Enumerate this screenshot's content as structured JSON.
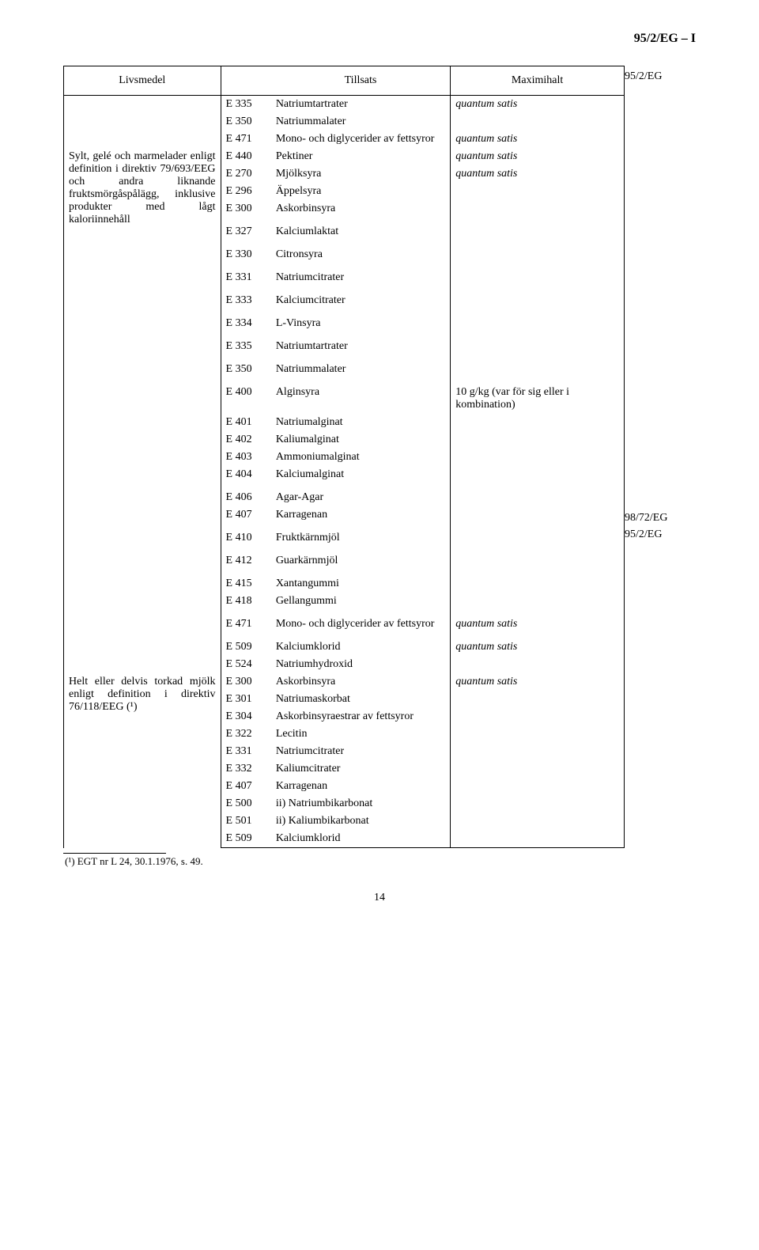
{
  "page_header_right": "95/2/EG – I",
  "side_labels": {
    "top": "95/2/EG",
    "mid1": "98/72/EG",
    "mid2": "95/2/EG"
  },
  "headers": {
    "livsmedel": "Livsmedel",
    "tillsats": "Tillsats",
    "maximihalt": "Maximihalt"
  },
  "blocks": [
    {
      "livsmedel": "",
      "side": "top",
      "rows": [
        {
          "c": "E 335",
          "n": "Natriumtartrater",
          "m": "quantum satis",
          "mi": true
        },
        {
          "c": "E 350",
          "n": "Natriummalater",
          "m": ""
        },
        {
          "c": "E 471",
          "n": "Mono- och diglycerider av fettsyror",
          "m": "quantum satis",
          "mi": true
        }
      ]
    },
    {
      "livsmedel": "Sylt, gelé och marmelader enligt definition i direktiv 79/693/EEG och andra liknande fruktsmörgåspålägg, inklusive produkter med lågt kaloriinnehåll",
      "rows": [
        {
          "c": "E 440",
          "n": "Pektiner",
          "m": "quantum satis",
          "mi": true
        },
        {
          "c": "E 270",
          "n": "Mjölksyra",
          "m": "quantum satis",
          "mi": true
        },
        {
          "c": "E 296",
          "n": "Äppelsyra",
          "m": ""
        },
        {
          "c": "E 300",
          "n": "Askorbinsyra",
          "m": ""
        },
        {
          "c": "E 327",
          "n": "Kalciumlaktat",
          "m": "",
          "gap": true
        },
        {
          "c": "E 330",
          "n": "Citronsyra",
          "m": "",
          "gap": true
        },
        {
          "c": "E 331",
          "n": "Natriumcitrater",
          "m": "",
          "gap": true
        },
        {
          "c": "E 333",
          "n": "Kalciumcitrater",
          "m": "",
          "gap": true
        },
        {
          "c": "E 334",
          "n": "L-Vinsyra",
          "m": "",
          "gap": true
        },
        {
          "c": "E 335",
          "n": "Natriumtartrater",
          "m": "",
          "gap": true
        },
        {
          "c": "E 350",
          "n": "Natriummalater",
          "m": "",
          "gap": true
        },
        {
          "c": "E 400",
          "n": "Alginsyra",
          "m": "10 g/kg (var för sig eller i kombination)",
          "gap": true
        },
        {
          "c": "E 401",
          "n": "Natriumalginat",
          "m": ""
        },
        {
          "c": "E 402",
          "n": "Kaliumalginat",
          "m": ""
        },
        {
          "c": "E 403",
          "n": "Ammoniumalginat",
          "m": ""
        },
        {
          "c": "E 404",
          "n": "Kalciumalginat",
          "m": ""
        },
        {
          "c": "E 406",
          "n": "Agar-Agar",
          "m": "",
          "gap": true
        },
        {
          "c": "E 407",
          "n": "Karragenan",
          "m": ""
        },
        {
          "c": "E 410",
          "n": "Fruktkärnmjöl",
          "m": "",
          "gap": true
        },
        {
          "c": "E 412",
          "n": "Guarkärnmjöl",
          "m": "",
          "gap": true
        },
        {
          "c": "E 415",
          "n": "Xantangummi",
          "m": "",
          "gap": true
        },
        {
          "c": "E 418",
          "n": "Gellangummi",
          "m": ""
        }
      ]
    },
    {
      "side": "mid1",
      "rows": [
        {
          "c": "E 471",
          "n": "Mono- och diglycerider av fettsyror",
          "m": "quantum satis",
          "mi": true,
          "gap": true
        }
      ]
    },
    {
      "side": "mid2",
      "rows": [
        {
          "c": "E 509",
          "n": "Kalciumklorid",
          "m": "quantum satis",
          "mi": true,
          "gap": true
        },
        {
          "c": "E 524",
          "n": "Natriumhydroxid",
          "m": ""
        }
      ]
    },
    {
      "livsmedel": "Helt eller delvis torkad mjölk enligt definition i direktiv 76/118/EEG (¹)",
      "bottom": true,
      "rows": [
        {
          "c": "E 300",
          "n": "Askorbinsyra",
          "m": "quantum satis",
          "mi": true
        },
        {
          "c": "E 301",
          "n": "Natriumaskorbat",
          "m": ""
        },
        {
          "c": "E 304",
          "n": "Askorbinsyraestrar av fettsyror",
          "m": ""
        },
        {
          "c": "E 322",
          "n": "Lecitin",
          "m": ""
        },
        {
          "c": "E 331",
          "n": "Natriumcitrater",
          "m": ""
        },
        {
          "c": "E 332",
          "n": "Kaliumcitrater",
          "m": ""
        },
        {
          "c": "E 407",
          "n": "Karragenan",
          "m": ""
        },
        {
          "c": "E 500",
          "n": "ii) Natriumbikarbonat",
          "m": ""
        },
        {
          "c": "E 501",
          "n": "ii) Kaliumbikarbonat",
          "m": ""
        },
        {
          "c": "E 509",
          "n": "Kalciumklorid",
          "m": ""
        }
      ]
    }
  ],
  "footnote": "(¹) EGT nr L 24, 30.1.1976, s. 49.",
  "page_number": "14"
}
